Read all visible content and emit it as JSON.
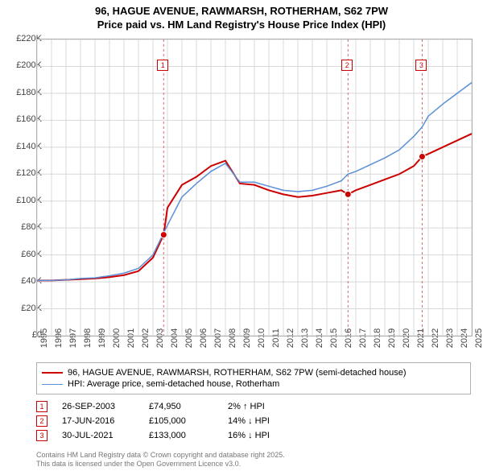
{
  "title_line1": "96, HAGUE AVENUE, RAWMARSH, ROTHERHAM, S62 7PW",
  "title_line2": "Price paid vs. HM Land Registry's House Price Index (HPI)",
  "chart": {
    "type": "line",
    "x_years": [
      1995,
      1996,
      1997,
      1998,
      1999,
      2000,
      2001,
      2002,
      2003,
      2004,
      2005,
      2006,
      2007,
      2008,
      2009,
      2010,
      2011,
      2012,
      2013,
      2014,
      2015,
      2016,
      2017,
      2018,
      2019,
      2020,
      2021,
      2022,
      2023,
      2024,
      2025
    ],
    "ylim": [
      0,
      220000
    ],
    "ytick_step": 20000,
    "y_tick_labels": [
      "£0",
      "£20K",
      "£40K",
      "£60K",
      "£80K",
      "£100K",
      "£120K",
      "£140K",
      "£160K",
      "£180K",
      "£200K",
      "£220K"
    ],
    "background_color": "#ffffff",
    "grid_color": "#d8d8d8",
    "vline_color": "#d46a6a",
    "vline_dash": "3,3",
    "series": [
      {
        "name": "property",
        "color": "#cc0000",
        "width": 2,
        "data": [
          [
            1995,
            41000
          ],
          [
            1996,
            41000
          ],
          [
            1997,
            41500
          ],
          [
            1998,
            42000
          ],
          [
            1999,
            42500
          ],
          [
            2000,
            43500
          ],
          [
            2001,
            45000
          ],
          [
            2002,
            48000
          ],
          [
            2003,
            58000
          ],
          [
            2003.74,
            74950
          ],
          [
            2004,
            95000
          ],
          [
            2005,
            112000
          ],
          [
            2006,
            118000
          ],
          [
            2007,
            126000
          ],
          [
            2008,
            130000
          ],
          [
            2009,
            113000
          ],
          [
            2010,
            112000
          ],
          [
            2011,
            108000
          ],
          [
            2012,
            105000
          ],
          [
            2013,
            103000
          ],
          [
            2014,
            104000
          ],
          [
            2015,
            106000
          ],
          [
            2016,
            108000
          ],
          [
            2016.46,
            105000
          ],
          [
            2017,
            108000
          ],
          [
            2018,
            112000
          ],
          [
            2019,
            116000
          ],
          [
            2020,
            120000
          ],
          [
            2021,
            126000
          ],
          [
            2021.58,
            133000
          ],
          [
            2022,
            135000
          ],
          [
            2023,
            140000
          ],
          [
            2024,
            145000
          ],
          [
            2025,
            150000
          ]
        ]
      },
      {
        "name": "hpi",
        "color": "#5b8fd6",
        "width": 1.5,
        "data": [
          [
            1995,
            41000
          ],
          [
            1996,
            41000
          ],
          [
            1997,
            41500
          ],
          [
            1998,
            42500
          ],
          [
            1999,
            43000
          ],
          [
            2000,
            44500
          ],
          [
            2001,
            46500
          ],
          [
            2002,
            50000
          ],
          [
            2003,
            60000
          ],
          [
            2004,
            82000
          ],
          [
            2005,
            103000
          ],
          [
            2006,
            113000
          ],
          [
            2007,
            122000
          ],
          [
            2008,
            128000
          ],
          [
            2009,
            114000
          ],
          [
            2010,
            114000
          ],
          [
            2011,
            111000
          ],
          [
            2012,
            108000
          ],
          [
            2013,
            107000
          ],
          [
            2014,
            108000
          ],
          [
            2015,
            111000
          ],
          [
            2016,
            115000
          ],
          [
            2016.46,
            120000
          ],
          [
            2017,
            122000
          ],
          [
            2018,
            127000
          ],
          [
            2019,
            132000
          ],
          [
            2020,
            138000
          ],
          [
            2021,
            148000
          ],
          [
            2021.58,
            155000
          ],
          [
            2022,
            163000
          ],
          [
            2023,
            172000
          ],
          [
            2024,
            180000
          ],
          [
            2025,
            188000
          ]
        ]
      }
    ],
    "sale_markers": [
      {
        "n": "1",
        "x": 2003.74,
        "y": 74950,
        "label_y": 200000
      },
      {
        "n": "2",
        "x": 2016.46,
        "y": 105000,
        "label_y": 200000
      },
      {
        "n": "3",
        "x": 2021.58,
        "y": 133000,
        "label_y": 200000
      }
    ]
  },
  "legend": {
    "items": [
      {
        "color": "#cc0000",
        "width": 2,
        "label": "96, HAGUE AVENUE, RAWMARSH, ROTHERHAM, S62 7PW (semi-detached house)"
      },
      {
        "color": "#5b8fd6",
        "width": 1.5,
        "label": "HPI: Average price, semi-detached house, Rotherham"
      }
    ]
  },
  "transactions": [
    {
      "n": "1",
      "date": "26-SEP-2003",
      "price": "£74,950",
      "delta": "2% ↑ HPI"
    },
    {
      "n": "2",
      "date": "17-JUN-2016",
      "price": "£105,000",
      "delta": "14% ↓ HPI"
    },
    {
      "n": "3",
      "date": "30-JUL-2021",
      "price": "£133,000",
      "delta": "16% ↓ HPI"
    }
  ],
  "footnote_line1": "Contains HM Land Registry data © Crown copyright and database right 2025.",
  "footnote_line2": "This data is licensed under the Open Government Licence v3.0.",
  "marker_border_color": "#cc0000",
  "marker_fill_color": "#ffffff"
}
